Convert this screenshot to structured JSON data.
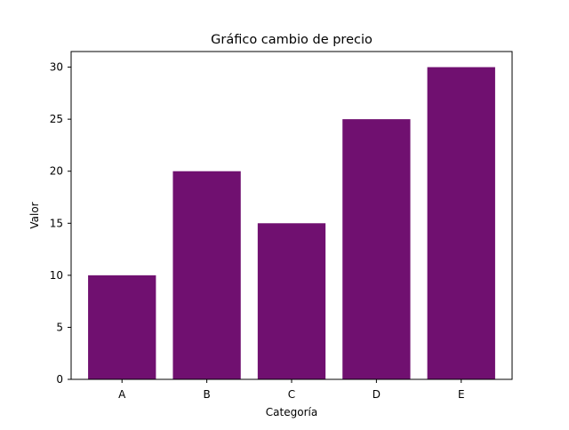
{
  "colors": {
    "bar": "#701070",
    "axis": "#000000",
    "background": "#ffffff"
  },
  "chart_data": {
    "type": "bar",
    "title": "Gráfico cambio de precio",
    "xlabel": "Categoría",
    "ylabel": "Valor",
    "categories": [
      "A",
      "B",
      "C",
      "D",
      "E"
    ],
    "values": [
      10,
      20,
      15,
      25,
      30
    ],
    "ylim": [
      0,
      31.5
    ],
    "yticks": [
      0,
      5,
      10,
      15,
      20,
      25,
      30
    ],
    "grid": false,
    "legend": "none"
  }
}
